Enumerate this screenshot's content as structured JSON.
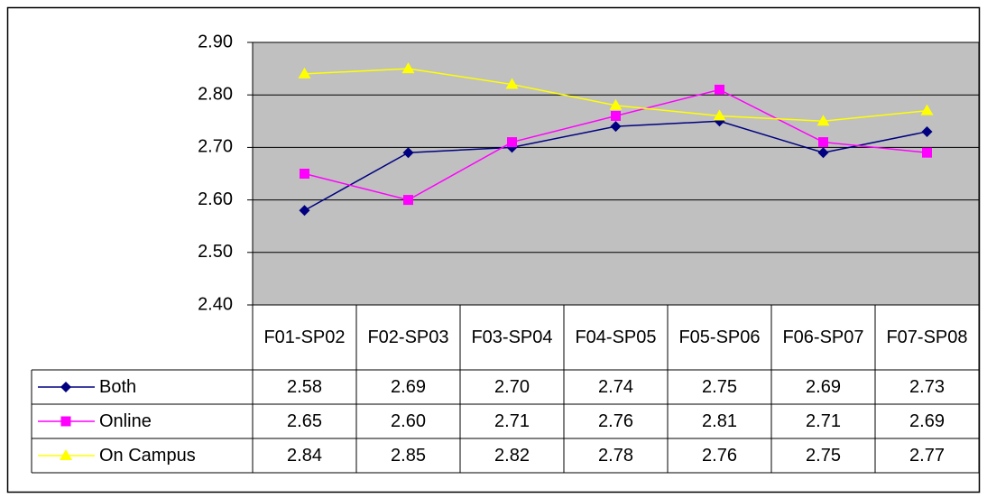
{
  "chart_data": {
    "type": "line",
    "categories": [
      "F01-SP02",
      "F02-SP03",
      "F03-SP04",
      "F04-SP05",
      "F05-SP06",
      "F06-SP07",
      "F07-SP08"
    ],
    "series": [
      {
        "name": "Both",
        "color": "#000080",
        "marker": "diamond",
        "values": [
          2.58,
          2.69,
          2.7,
          2.74,
          2.75,
          2.69,
          2.73
        ],
        "value_labels": [
          "2.58",
          "2.69",
          "2.70",
          "2.74",
          "2.75",
          "2.69",
          "2.73"
        ]
      },
      {
        "name": "Online",
        "color": "#ff00ff",
        "marker": "square",
        "values": [
          2.65,
          2.6,
          2.71,
          2.76,
          2.81,
          2.71,
          2.69
        ],
        "value_labels": [
          "2.65",
          "2.60",
          "2.71",
          "2.76",
          "2.81",
          "2.71",
          "2.69"
        ]
      },
      {
        "name": "On Campus",
        "color": "#ffff00",
        "marker": "triangle",
        "values": [
          2.84,
          2.85,
          2.82,
          2.78,
          2.76,
          2.75,
          2.77
        ],
        "value_labels": [
          "2.84",
          "2.85",
          "2.82",
          "2.78",
          "2.76",
          "2.75",
          "2.77"
        ]
      }
    ],
    "ylim": [
      2.4,
      2.9
    ],
    "yticks": [
      {
        "value": 2.4,
        "label": "2.40"
      },
      {
        "value": 2.5,
        "label": "2.50"
      },
      {
        "value": 2.6,
        "label": "2.60"
      },
      {
        "value": 2.7,
        "label": "2.70"
      },
      {
        "value": 2.8,
        "label": "2.80"
      },
      {
        "value": 2.9,
        "label": "2.90"
      }
    ],
    "grid": true,
    "plot_background": "#c0c0c0",
    "data_table": true
  }
}
